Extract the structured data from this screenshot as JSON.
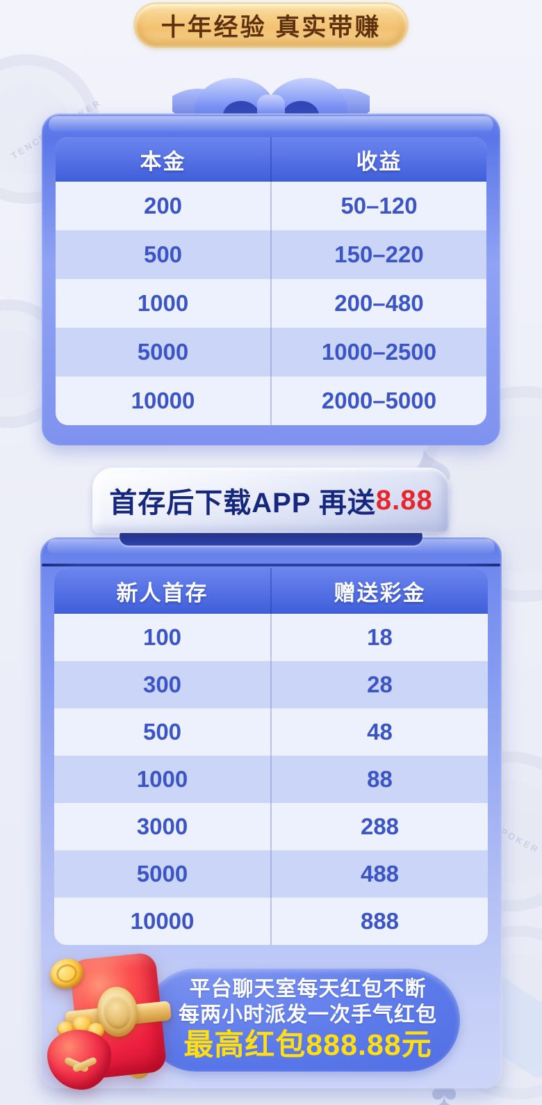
{
  "badge": {
    "label": "十年经验 真实带赚"
  },
  "profit_box": {
    "table": {
      "headers": [
        "本金",
        "收益"
      ],
      "rows": [
        [
          "200",
          "50–120"
        ],
        [
          "500",
          "150–220"
        ],
        [
          "1000",
          "200–480"
        ],
        [
          "5000",
          "1000–2500"
        ],
        [
          "10000",
          "2000–5000"
        ]
      ]
    }
  },
  "app_banner": {
    "text": "首存后下载APP 再送",
    "bonus": "8.88"
  },
  "deposit_box": {
    "table": {
      "headers": [
        "新人首存",
        "赠送彩金"
      ],
      "rows": [
        [
          "100",
          "18"
        ],
        [
          "300",
          "28"
        ],
        [
          "500",
          "48"
        ],
        [
          "1000",
          "88"
        ],
        [
          "3000",
          "288"
        ],
        [
          "5000",
          "488"
        ],
        [
          "10000",
          "888"
        ]
      ]
    },
    "redpacket_promo": {
      "line1": "平台聊天室每天红包不断",
      "line2": "每两小时派发一次手气红包",
      "highlight": "最高红包888.88元"
    }
  },
  "background": {
    "watermark": "TENCENT POKER"
  },
  "colors": {
    "accent_blue": "#4f6ce2",
    "row_light": "#edf1fd",
    "row_dark": "#cbd5f7",
    "cell_text_blue": "#3b55c6",
    "banner_text_navy": "#16277f",
    "bonus_red": "#e8262a",
    "highlight_yellow": "#ffdf12",
    "badge_gold": "#f3c171",
    "badge_text_brown": "#5e320e",
    "envelope_red": "#ee2040"
  }
}
